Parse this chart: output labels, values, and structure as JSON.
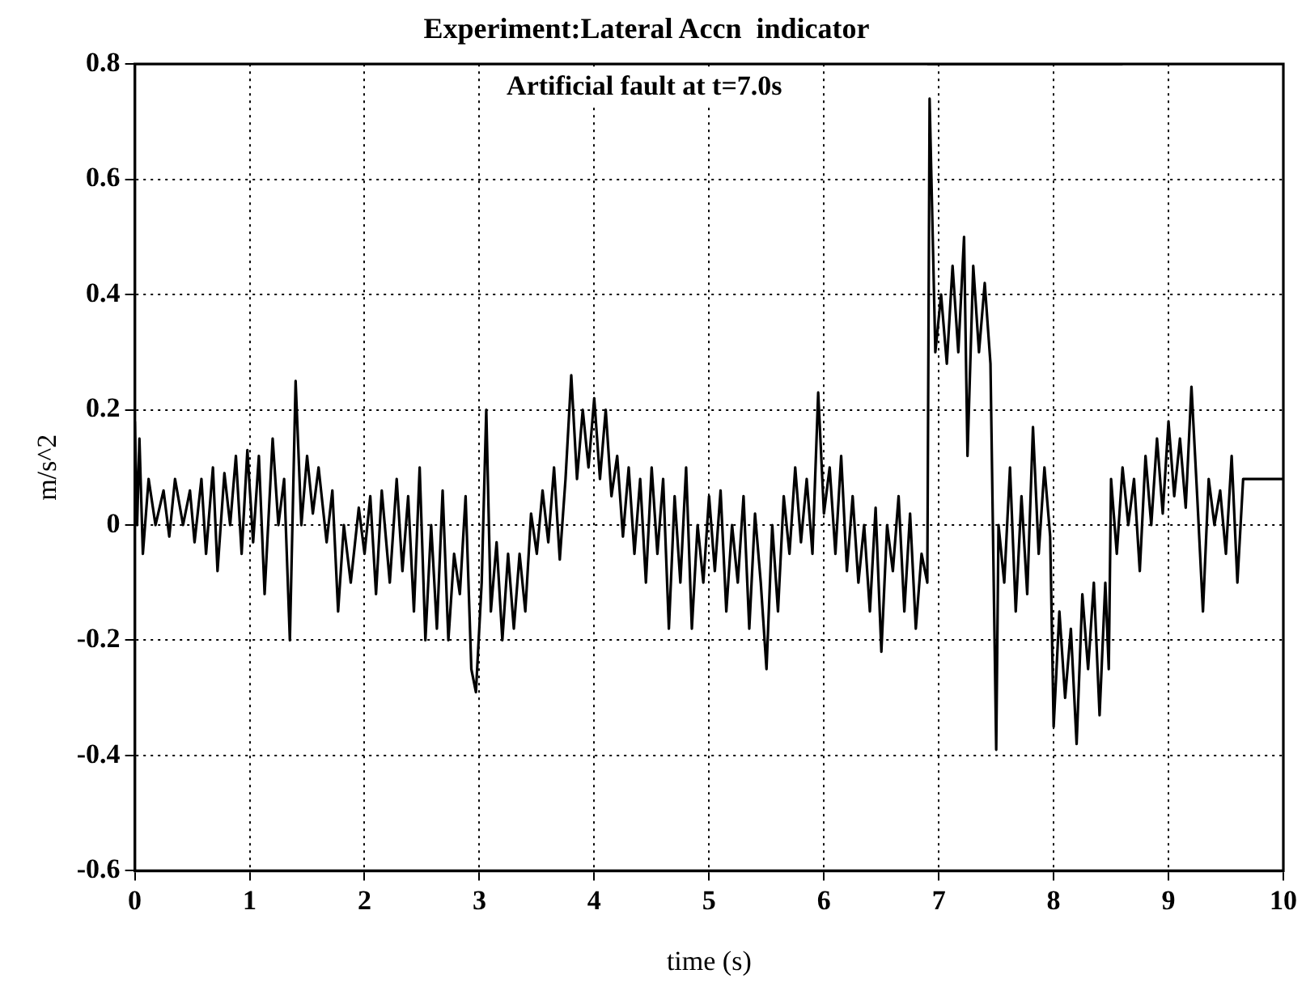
{
  "chart_data": {
    "type": "line",
    "title": "Experiment:Lateral Accn  indicator",
    "annotations": [
      "Artificial fault at t=7.0s"
    ],
    "xlabel": "time (s)",
    "ylabel": "m/s^2",
    "xlim": [
      0,
      10
    ],
    "xticks": [
      0,
      1,
      2,
      3,
      4,
      5,
      6,
      7,
      8,
      9,
      10
    ],
    "ylim": [
      -0.6,
      0.8
    ],
    "yticks": [
      -0.6,
      -0.4,
      -0.2,
      0,
      0.2,
      0.4,
      0.6,
      0.8
    ],
    "grid": true,
    "legend": false,
    "marker": "none",
    "line_style": "solid",
    "series": [
      {
        "color": "#000000",
        "x": [
          0,
          0.02,
          0.04,
          0.07,
          0.12,
          0.18,
          0.25,
          0.3,
          0.35,
          0.42,
          0.48,
          0.52,
          0.58,
          0.62,
          0.68,
          0.72,
          0.78,
          0.83,
          0.88,
          0.93,
          0.98,
          1.03,
          1.08,
          1.13,
          1.2,
          1.25,
          1.3,
          1.35,
          1.4,
          1.45,
          1.5,
          1.55,
          1.6,
          1.67,
          1.72,
          1.77,
          1.82,
          1.88,
          1.95,
          2.0,
          2.05,
          2.1,
          2.15,
          2.22,
          2.28,
          2.33,
          2.38,
          2.43,
          2.48,
          2.53,
          2.58,
          2.63,
          2.68,
          2.73,
          2.78,
          2.83,
          2.88,
          2.93,
          2.97,
          3.02,
          3.06,
          3.1,
          3.15,
          3.2,
          3.25,
          3.3,
          3.35,
          3.4,
          3.45,
          3.5,
          3.55,
          3.6,
          3.65,
          3.7,
          3.75,
          3.8,
          3.85,
          3.9,
          3.95,
          4.0,
          4.05,
          4.1,
          4.15,
          4.2,
          4.25,
          4.3,
          4.35,
          4.4,
          4.45,
          4.5,
          4.55,
          4.6,
          4.65,
          4.7,
          4.75,
          4.8,
          4.85,
          4.9,
          4.95,
          5.0,
          5.05,
          5.1,
          5.15,
          5.2,
          5.25,
          5.3,
          5.35,
          5.4,
          5.45,
          5.5,
          5.55,
          5.6,
          5.65,
          5.7,
          5.75,
          5.8,
          5.85,
          5.9,
          5.95,
          6.0,
          6.05,
          6.1,
          6.15,
          6.2,
          6.25,
          6.3,
          6.35,
          6.4,
          6.45,
          6.5,
          6.55,
          6.6,
          6.65,
          6.7,
          6.75,
          6.8,
          6.85,
          6.9,
          6.92,
          6.97,
          7.02,
          7.07,
          7.12,
          7.17,
          7.22,
          7.25,
          7.3,
          7.35,
          7.4,
          7.45,
          7.5,
          7.52,
          7.57,
          7.62,
          7.67,
          7.72,
          7.77,
          7.82,
          7.87,
          7.92,
          7.97,
          8.0,
          8.05,
          8.1,
          8.15,
          8.2,
          8.25,
          8.3,
          8.35,
          8.4,
          8.45,
          8.48,
          8.5,
          8.55,
          8.6,
          8.65,
          8.7,
          8.75,
          8.8,
          8.85,
          8.9,
          8.95,
          9.0,
          9.05,
          9.1,
          9.15,
          9.2,
          9.25,
          9.3,
          9.35,
          9.4,
          9.45,
          9.5,
          9.55,
          9.6,
          9.65,
          10.0
        ],
        "values": [
          0.18,
          0.0,
          0.15,
          -0.05,
          0.08,
          0.0,
          0.06,
          -0.02,
          0.08,
          0.0,
          0.06,
          -0.03,
          0.08,
          -0.05,
          0.1,
          -0.08,
          0.09,
          0.0,
          0.12,
          -0.05,
          0.13,
          -0.03,
          0.12,
          -0.12,
          0.15,
          0.0,
          0.08,
          -0.2,
          0.25,
          0.0,
          0.12,
          0.02,
          0.1,
          -0.03,
          0.06,
          -0.15,
          0.0,
          -0.1,
          0.03,
          -0.05,
          0.05,
          -0.12,
          0.06,
          -0.1,
          0.08,
          -0.08,
          0.05,
          -0.15,
          0.1,
          -0.2,
          0.0,
          -0.18,
          0.06,
          -0.2,
          -0.05,
          -0.12,
          0.05,
          -0.25,
          -0.29,
          -0.1,
          0.2,
          -0.15,
          -0.03,
          -0.2,
          -0.05,
          -0.18,
          -0.05,
          -0.15,
          0.02,
          -0.05,
          0.06,
          -0.03,
          0.1,
          -0.06,
          0.08,
          0.26,
          0.08,
          0.2,
          0.1,
          0.22,
          0.08,
          0.2,
          0.05,
          0.12,
          -0.02,
          0.1,
          -0.05,
          0.08,
          -0.1,
          0.1,
          -0.05,
          0.08,
          -0.18,
          0.05,
          -0.1,
          0.1,
          -0.18,
          0.0,
          -0.1,
          0.05,
          -0.08,
          0.06,
          -0.15,
          0.0,
          -0.1,
          0.05,
          -0.18,
          0.02,
          -0.1,
          -0.25,
          0.0,
          -0.15,
          0.05,
          -0.05,
          0.1,
          -0.03,
          0.08,
          -0.05,
          0.23,
          0.02,
          0.1,
          -0.05,
          0.12,
          -0.08,
          0.05,
          -0.1,
          0.0,
          -0.15,
          0.03,
          -0.22,
          0.0,
          -0.08,
          0.05,
          -0.15,
          0.02,
          -0.18,
          -0.05,
          -0.1,
          0.74,
          0.3,
          0.4,
          0.28,
          0.45,
          0.3,
          0.5,
          0.12,
          0.45,
          0.3,
          0.42,
          0.28,
          -0.39,
          0.0,
          -0.1,
          0.1,
          -0.15,
          0.05,
          -0.12,
          0.17,
          -0.05,
          0.1,
          -0.02,
          -0.35,
          -0.15,
          -0.3,
          -0.18,
          -0.38,
          -0.12,
          -0.25,
          -0.1,
          -0.33,
          -0.1,
          -0.25,
          0.08,
          -0.05,
          0.1,
          0.0,
          0.08,
          -0.08,
          0.12,
          0.0,
          0.15,
          0.02,
          0.18,
          0.05,
          0.15,
          0.03,
          0.24,
          0.05,
          -0.15,
          0.08,
          0.0,
          0.06,
          -0.05,
          0.12,
          -0.1,
          0.08,
          0.08
        ]
      },
      {
        "color": "#000000",
        "x": [
          6.9,
          8.6
        ],
        "values": [
          0.8,
          0.8
        ]
      }
    ]
  }
}
